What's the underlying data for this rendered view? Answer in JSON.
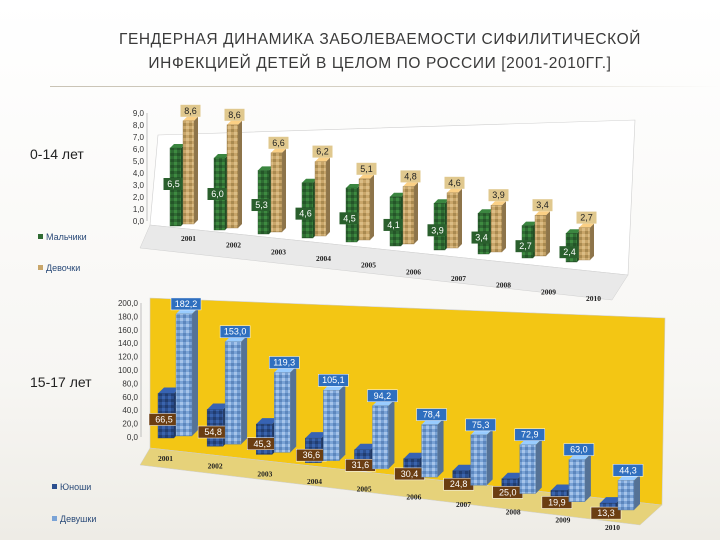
{
  "title_lines": [
    "ГЕНДЕРНАЯ ДИНАМИКА ЗАБОЛЕВАЕМОСТИ СИФИЛИТИЧЕСКОЙ",
    "ИНФЕКЦИЕЙ ДЕТЕЙ В ЦЕЛОМ ПО РОССИИ [2001-2010ГГ.]"
  ],
  "panel_labels": {
    "top": "0-14 лет",
    "bottom": "15-17 лет"
  },
  "colors": {
    "boys_top": "#2f6b33",
    "girls_top": "#c9a66a",
    "boys_bottom": "#2c4f8f",
    "girls_bottom": "#7aa3d6",
    "panel_bottom_bg": "#f3c614",
    "panel_top_bg": "#ffffff"
  },
  "chart_data": [
    {
      "type": "bar",
      "title": "",
      "categories": [
        "2001",
        "2002",
        "2003",
        "2004",
        "2005",
        "2006",
        "2007",
        "2008",
        "2009",
        "2010"
      ],
      "series": [
        {
          "name": "Мальчики",
          "values": [
            6.5,
            6.0,
            5.3,
            4.6,
            4.5,
            4.1,
            3.9,
            3.4,
            2.7,
            2.4
          ]
        },
        {
          "name": "Девочки",
          "values": [
            8.6,
            8.6,
            6.6,
            6.2,
            5.1,
            4.8,
            4.6,
            3.9,
            3.4,
            2.7
          ]
        }
      ],
      "data_labels": {
        "Мальчики": [
          "6,5",
          "6,0",
          "5,3",
          "4,6",
          "4,5",
          "4,1",
          "3,9",
          "3,4",
          "2,7",
          "2,4"
        ],
        "Девочки": [
          "8,6",
          "8,6",
          "6,6",
          "6,2",
          "5,1",
          "4,8",
          "4,6",
          "3,9",
          "3,4",
          "2,7"
        ]
      },
      "ylim": [
        0,
        9
      ],
      "yticks": [
        "0,0",
        "1,0",
        "2,0",
        "3,0",
        "4,0",
        "5,0",
        "6,0",
        "7,0",
        "8,0",
        "9,0"
      ],
      "grid": false,
      "legend": "left-bottom"
    },
    {
      "type": "bar",
      "title": "",
      "categories": [
        "2001",
        "2002",
        "2003",
        "2004",
        "2005",
        "2006",
        "2007",
        "2008",
        "2009",
        "2010"
      ],
      "series": [
        {
          "name": "Юноши",
          "values": [
            66.5,
            54.8,
            45.3,
            36.6,
            31.6,
            30.4,
            24.8,
            25.0,
            19.9,
            13.3
          ]
        },
        {
          "name": "Девушки",
          "values": [
            182.2,
            153.0,
            119.3,
            105.1,
            94.2,
            78.4,
            75.3,
            72.9,
            63.0,
            44.3
          ]
        }
      ],
      "data_labels": {
        "Юноши": [
          "66,5",
          "54,8",
          "45,3",
          "36,6",
          "31,6",
          "30,4",
          "24,8",
          "25,0",
          "19,9",
          "13,3"
        ],
        "Девушки": [
          "182,2",
          "153,0",
          "119,3",
          "105,1",
          "94,2",
          "78,4",
          "75,3",
          "72,9",
          "63,0",
          "44,3"
        ]
      },
      "ylim": [
        0,
        200
      ],
      "yticks": [
        "0,0",
        "20,0",
        "40,0",
        "60,0",
        "80,0",
        "100,0",
        "120,0",
        "140,0",
        "160,0",
        "180,0",
        "200,0"
      ],
      "grid": false,
      "legend": "left-bottom"
    }
  ]
}
